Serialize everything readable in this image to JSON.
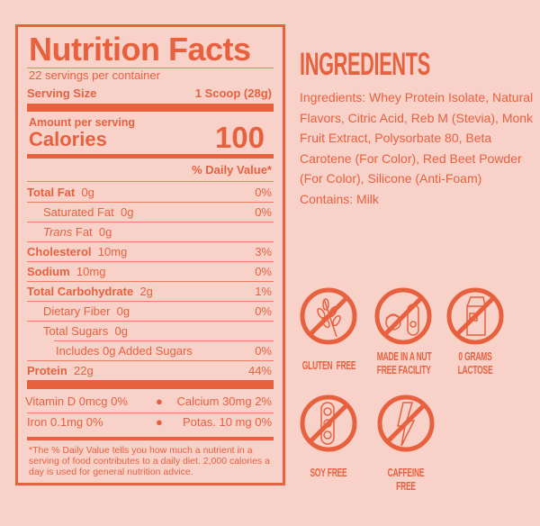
{
  "nutrition": {
    "title": "Nutrition Facts",
    "servings": "22 servings per container",
    "serving_size_label": "Serving Size",
    "serving_size_value": "1 Scoop (28g)",
    "amount_per_serving": "Amount per serving",
    "calories_label": "Calories",
    "calories_value": "100",
    "daily_value_header": "% Daily Value*",
    "rows": [
      {
        "label": "Total Fat",
        "amount": "0g",
        "pct": "0%"
      },
      {
        "label": "Saturated Fat",
        "amount": "0g",
        "pct": "0%"
      },
      {
        "label": "Trans",
        "label2": "Fat",
        "amount": "0g",
        "pct": ""
      },
      {
        "label": "Cholesterol",
        "amount": "10mg",
        "pct": "3%"
      },
      {
        "label": "Sodium",
        "amount": "10mg",
        "pct": "0%"
      },
      {
        "label": "Total Carbohydrate",
        "amount": "2g",
        "pct": "1%"
      },
      {
        "label": "Dietary Fiber",
        "amount": "0g",
        "pct": "0%"
      },
      {
        "label": "Total Sugars",
        "amount": "0g",
        "pct": ""
      },
      {
        "label": "Includes 0g Added Sugars",
        "amount": "",
        "pct": "0%"
      },
      {
        "label": "Protein",
        "amount": "22g",
        "pct": "44%"
      }
    ],
    "vitamins": [
      {
        "left": "Vitamin D  0mcg  0%",
        "right": "Calcium 30mg 2%"
      },
      {
        "left": "Iron  0.1mg  0%",
        "right": "Potas.   10 mg 0%"
      }
    ],
    "footnote": "*The % Daily Value tells you how much a nutrient in a serving of food contributes to a daily diet. 2,000 calories a day is used for general nutrition advice."
  },
  "ingredients": {
    "title": "INGREDIENTS",
    "text": "Ingredients: Whey Protein Isolate, Natural Flavors, Citric Acid, Reb M (Stevia), Monk Fruit Extract, Polysorbate 80, Beta Carotene (For Color),  Red Beet Powder (For Color), Silicone (Anti-Foam)",
    "contains": "Contains: Milk"
  },
  "badges": [
    {
      "icon": "wheat-icon",
      "label": "GLUTEN  FREE"
    },
    {
      "icon": "nut-icon",
      "label": "MADE IN A NUT\nFREE FACILITY"
    },
    {
      "icon": "milk-carton-icon",
      "label": "0 GRAMS\nLACTOSE"
    },
    {
      "icon": "soybean-icon",
      "label": "SOY FREE"
    },
    {
      "icon": "lightning-icon",
      "label": "CAFFEINE\nFREE"
    }
  ],
  "colors": {
    "accent": "#e8613f",
    "background": "#f8d1c9"
  }
}
